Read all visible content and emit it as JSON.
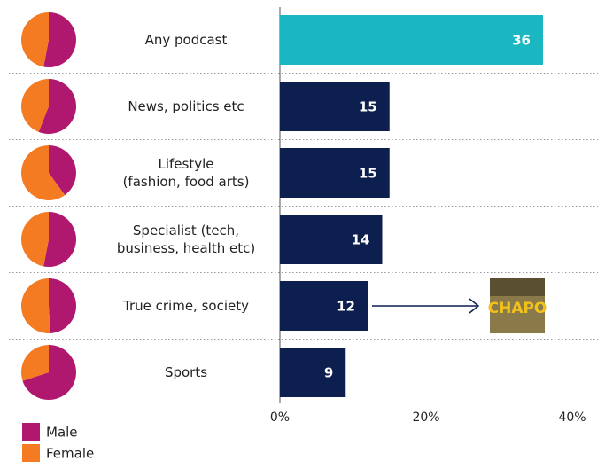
{
  "chart_data": [
    {
      "type": "bar",
      "categories": [
        "Any podcast",
        "News, politics etc",
        "Lifestyle\n(fashion, food arts)",
        "Specialist (tech,\nbusiness, health etc)",
        "True crime, society",
        "Sports"
      ],
      "values": [
        36,
        15,
        15,
        14,
        12,
        9
      ],
      "colors": [
        "#1ab7c3",
        "#0c1f4e",
        "#0c1f4e",
        "#0c1f4e",
        "#0c1f4e",
        "#0c1f4e"
      ],
      "xlim": [
        0,
        40
      ],
      "xticks": [
        {
          "value": 0,
          "label": "0%"
        },
        {
          "value": 20,
          "label": "20%"
        },
        {
          "value": 40,
          "label": "40%"
        }
      ],
      "annotation": "CHAPO"
    },
    {
      "type": "pie",
      "series": [
        {
          "name": "Male",
          "color": "#b0186f",
          "values": [
            53,
            56,
            40,
            53,
            49,
            70
          ]
        },
        {
          "name": "Female",
          "color": "#f47b22",
          "values": [
            47,
            44,
            60,
            47,
            51,
            30
          ]
        }
      ]
    }
  ]
}
